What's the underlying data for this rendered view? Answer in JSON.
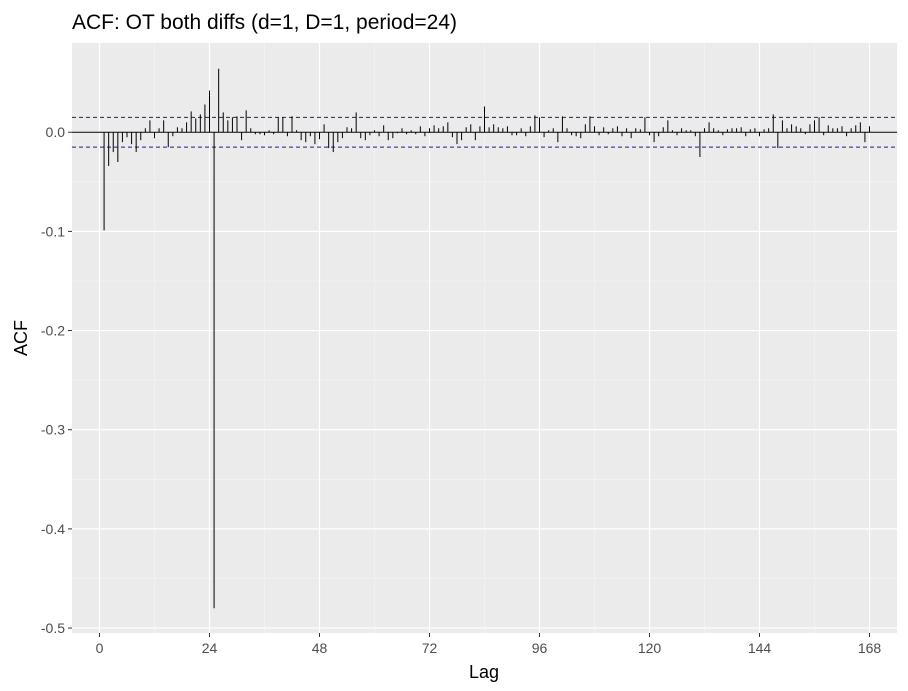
{
  "chart_data": {
    "type": "bar",
    "title": "ACF: OT both diffs (d=1, D=1, period=24)",
    "xlabel": "Lag",
    "ylabel": "ACF",
    "xlim": [
      -6,
      174
    ],
    "ylim": [
      -0.505,
      0.09
    ],
    "x_ticks": [
      0,
      24,
      48,
      72,
      96,
      120,
      144,
      168
    ],
    "x_tick_labels": [
      "0",
      "24",
      "48",
      "72",
      "96",
      "120",
      "144",
      "168"
    ],
    "y_ticks": [
      0.0,
      -0.1,
      -0.2,
      -0.3,
      -0.4,
      -0.5
    ],
    "y_tick_labels": [
      "0.0",
      "-0.1",
      "-0.2",
      "-0.3",
      "-0.4",
      "-0.5"
    ],
    "grid": true,
    "zero_line": 0,
    "confidence_bound": 0.015,
    "series": [
      {
        "lags": [
          1,
          2,
          3,
          4,
          5,
          6,
          7,
          8,
          9,
          10,
          11,
          12,
          13,
          14,
          15,
          16,
          17,
          18,
          19,
          20,
          21,
          22,
          23,
          24,
          25,
          26,
          27,
          28,
          29,
          30,
          31,
          32,
          33,
          34,
          35,
          36,
          37,
          38,
          39,
          40,
          41,
          42,
          43,
          44,
          45,
          46,
          47,
          48,
          49,
          50,
          51,
          52,
          53,
          54,
          55,
          56,
          57,
          58,
          59,
          60,
          61,
          62,
          63,
          64,
          65,
          66,
          67,
          68,
          69,
          70,
          71,
          72,
          73,
          74,
          75,
          76,
          77,
          78,
          79,
          80,
          81,
          82,
          83,
          84,
          85,
          86,
          87,
          88,
          89,
          90,
          91,
          92,
          93,
          94,
          95,
          96,
          97,
          98,
          99,
          100,
          101,
          102,
          103,
          104,
          105,
          106,
          107,
          108,
          109,
          110,
          111,
          112,
          113,
          114,
          115,
          116,
          117,
          118,
          119,
          120,
          121,
          122,
          123,
          124,
          125,
          126,
          127,
          128,
          129,
          130,
          131,
          132,
          133,
          134,
          135,
          136,
          137,
          138,
          139,
          140,
          141,
          142,
          143,
          144,
          145,
          146,
          147,
          148,
          149,
          150,
          151,
          152,
          153,
          154,
          155,
          156,
          157,
          158,
          159,
          160,
          161,
          162,
          163,
          164,
          165,
          166,
          167,
          168
        ],
        "values": [
          -0.099,
          -0.034,
          -0.02,
          -0.03,
          -0.01,
          -0.005,
          -0.012,
          -0.02,
          -0.008,
          0.004,
          0.012,
          -0.006,
          0.004,
          0.012,
          -0.015,
          -0.004,
          0.005,
          0.004,
          0.01,
          0.021,
          0.014,
          0.018,
          0.028,
          0.042,
          -0.48,
          0.064,
          0.02,
          0.012,
          0.015,
          0.016,
          -0.008,
          0.022,
          0.004,
          -0.002,
          -0.002,
          -0.003,
          0.002,
          -0.002,
          0.015,
          0.015,
          -0.004,
          0.016,
          0.002,
          -0.008,
          -0.01,
          -0.004,
          -0.012,
          -0.007,
          0.008,
          -0.016,
          -0.02,
          -0.01,
          -0.006,
          0.005,
          0.004,
          0.02,
          -0.006,
          -0.008,
          -0.003,
          0.002,
          -0.004,
          0.007,
          -0.008,
          -0.006,
          -0.001,
          0.004,
          -0.002,
          0.002,
          -0.002,
          0.006,
          -0.004,
          0.004,
          0.007,
          0.004,
          0.006,
          0.01,
          -0.005,
          -0.012,
          -0.008,
          0.005,
          0.008,
          -0.008,
          0.006,
          0.026,
          0.005,
          0.008,
          0.005,
          0.004,
          0.006,
          -0.003,
          -0.003,
          0.004,
          -0.004,
          0.006,
          0.017,
          0.015,
          -0.005,
          0.002,
          0.004,
          -0.01,
          0.016,
          0.004,
          -0.003,
          -0.004,
          -0.006,
          0.008,
          0.016,
          0.006,
          -0.003,
          0.005,
          -0.002,
          0.004,
          0.006,
          -0.004,
          0.004,
          -0.006,
          0.004,
          0.003,
          0.015,
          -0.003,
          -0.01,
          -0.004,
          0.005,
          0.012,
          0.002,
          -0.003,
          0.004,
          0.002,
          0.002,
          -0.004,
          -0.025,
          0.004,
          0.01,
          0.004,
          0.002,
          -0.003,
          0.003,
          0.004,
          0.004,
          0.005,
          -0.004,
          0.003,
          0.004,
          -0.004,
          0.003,
          0.004,
          0.018,
          -0.016,
          0.012,
          0.004,
          0.008,
          0.006,
          0.004,
          -0.002,
          0.008,
          0.012,
          0.015,
          -0.003,
          0.007,
          0.004,
          0.004,
          0.006,
          -0.004,
          0.004,
          0.007,
          0.01,
          -0.01,
          0.006,
          0.016,
          0.008,
          -0.006,
          0.004,
          0.01,
          0.008,
          0.012
        ]
      }
    ]
  }
}
